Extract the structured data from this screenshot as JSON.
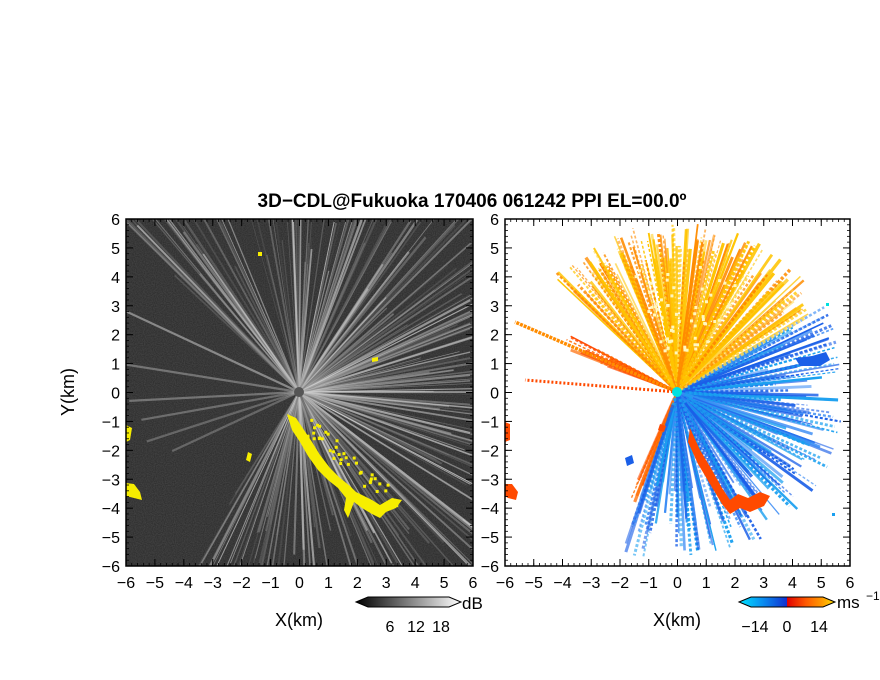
{
  "chart_data": {
    "title": "3D−CDL@Fukuoka 170406 061242 PPI EL=00.0º",
    "ylabel": "Y(km)",
    "panels": [
      {
        "type": "heatmap",
        "variable": "reflectivity",
        "xlabel": "X(km)",
        "xlim": [
          -6,
          6
        ],
        "ylim": [
          -6,
          6
        ],
        "x_ticks": [
          -6,
          -5,
          -4,
          -3,
          -2,
          -1,
          0,
          1,
          2,
          3,
          4,
          5,
          6
        ],
        "y_ticks": [
          -6,
          -5,
          -4,
          -3,
          -2,
          -1,
          0,
          1,
          2,
          3,
          4,
          5,
          6
        ],
        "colorbar": {
          "unit": "dB",
          "ticks": [
            6,
            12,
            18
          ],
          "colormap": "grayscale",
          "extend": "both"
        },
        "highlight_color": "#f7ee00"
      },
      {
        "type": "heatmap",
        "variable": "radial velocity",
        "xlabel": "X(km)",
        "xlim": [
          -6,
          6
        ],
        "ylim": [
          -6,
          6
        ],
        "x_ticks": [
          -6,
          -5,
          -4,
          -3,
          -2,
          -1,
          0,
          1,
          2,
          3,
          4,
          5,
          6
        ],
        "y_ticks": [
          -6,
          -5,
          -4,
          -3,
          -2,
          -1,
          0,
          1,
          2,
          3,
          4,
          5,
          6
        ],
        "colorbar": {
          "unit": "ms",
          "unit_exponent": "−1",
          "ticks": [
            "−14",
            "0",
            "14"
          ],
          "colormap": "cyan-blue-red-orange-yellow",
          "extend": "both"
        }
      }
    ]
  },
  "tick_labels": [
    "−6",
    "−5",
    "−4",
    "−3",
    "−2",
    "−1",
    "0",
    "1",
    "2",
    "3",
    "4",
    "5",
    "6"
  ],
  "colors": {
    "dark_bg": "#262626",
    "yellow": "#f7ee00",
    "neg_light": "#1aa0f0",
    "neg": "#1a5fe8",
    "pos": "#ff4a00",
    "pos_mid": "#ff8c00",
    "pos_light": "#ffc400"
  }
}
